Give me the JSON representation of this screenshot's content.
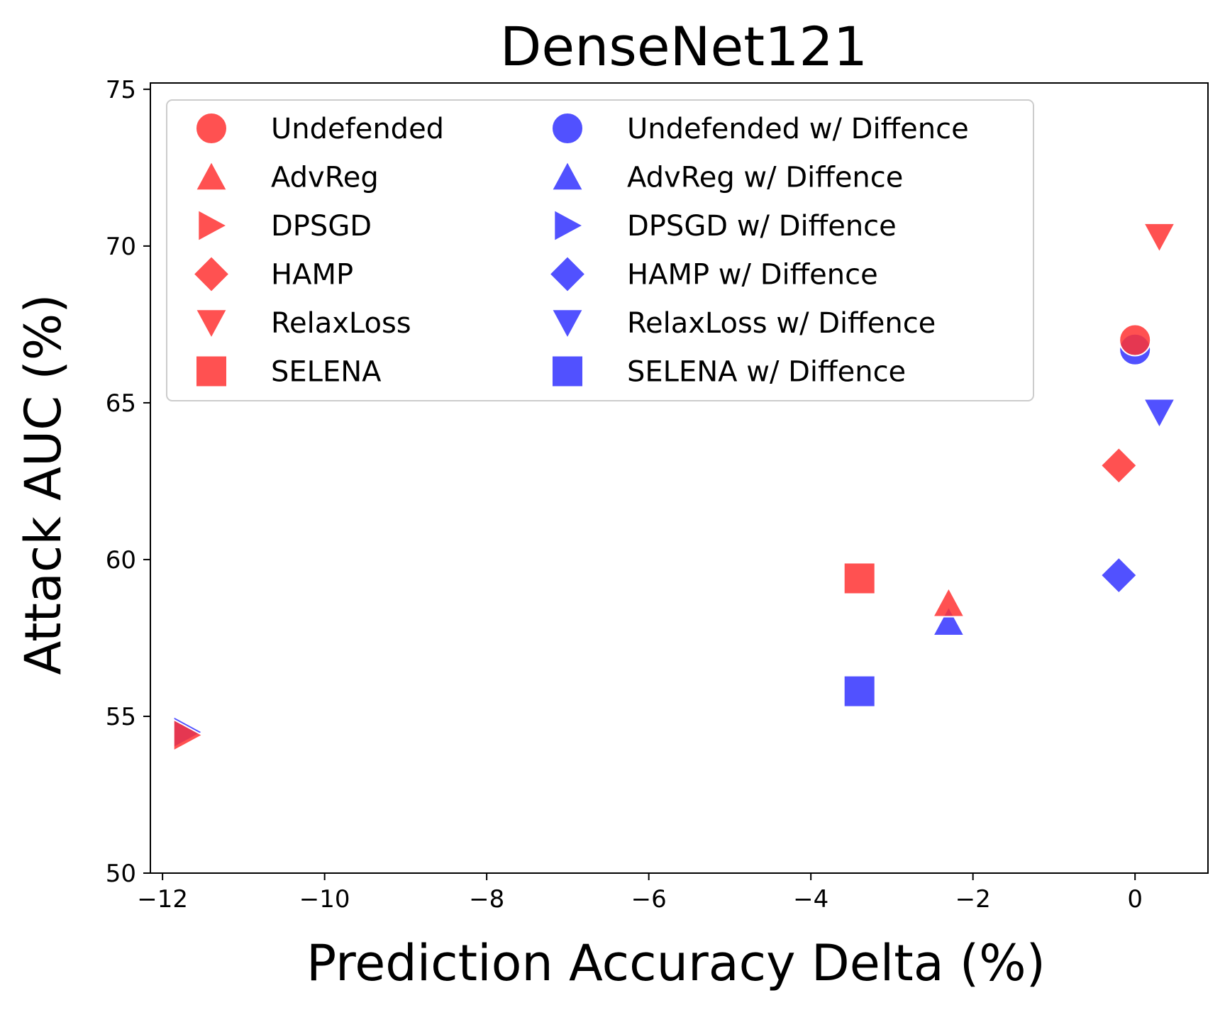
{
  "chart_data": {
    "type": "scatter",
    "title": "DenseNet121",
    "xlabel": "Prediction Accuracy Delta (%)",
    "ylabel": "Attack AUC (%)",
    "xlim": [
      -12.15,
      0.9
    ],
    "ylim": [
      50,
      75.2
    ],
    "xticks": [
      -12,
      -10,
      -8,
      -6,
      -4,
      -2,
      0
    ],
    "xtick_labels": [
      "−12",
      "−10",
      "−8",
      "−6",
      "−4",
      "−2",
      "0"
    ],
    "yticks": [
      50,
      55,
      60,
      65,
      70,
      75
    ],
    "ytick_labels": [
      "50",
      "55",
      "60",
      "65",
      "70",
      "75"
    ],
    "grid": false,
    "legend_position": "top-left",
    "legend_columns": 2,
    "colors": {
      "undefended_family": "#ff3333",
      "diffence_family": "#3333ff"
    },
    "series": [
      {
        "name": "Undefended",
        "marker": "circle",
        "color": "#ff3333",
        "x": [
          0.0
        ],
        "y": [
          67.0
        ]
      },
      {
        "name": "AdvReg",
        "marker": "triangle-up",
        "color": "#ff3333",
        "x": [
          -2.3
        ],
        "y": [
          58.6
        ]
      },
      {
        "name": "DPSGD",
        "marker": "triangle-right",
        "color": "#ff3333",
        "x": [
          -11.7
        ],
        "y": [
          54.4
        ]
      },
      {
        "name": "HAMP",
        "marker": "diamond",
        "color": "#ff3333",
        "x": [
          -0.2
        ],
        "y": [
          63.0
        ]
      },
      {
        "name": "RelaxLoss",
        "marker": "triangle-down",
        "color": "#ff3333",
        "x": [
          0.3
        ],
        "y": [
          70.3
        ]
      },
      {
        "name": "SELENA",
        "marker": "square",
        "color": "#ff3333",
        "x": [
          -3.4
        ],
        "y": [
          59.4
        ]
      },
      {
        "name": "Undefended w/ Diffence",
        "marker": "circle",
        "color": "#3333ff",
        "x": [
          0.0
        ],
        "y": [
          66.7
        ]
      },
      {
        "name": "AdvReg w/ Diffence",
        "marker": "triangle-up",
        "color": "#3333ff",
        "x": [
          -2.3
        ],
        "y": [
          58.0
        ]
      },
      {
        "name": "DPSGD w/ Diffence",
        "marker": "triangle-right",
        "color": "#3333ff",
        "x": [
          -11.7
        ],
        "y": [
          54.5
        ]
      },
      {
        "name": "HAMP w/ Diffence",
        "marker": "diamond",
        "color": "#3333ff",
        "x": [
          -0.2
        ],
        "y": [
          59.5
        ]
      },
      {
        "name": "RelaxLoss w/ Diffence",
        "marker": "triangle-down",
        "color": "#3333ff",
        "x": [
          0.3
        ],
        "y": [
          64.7
        ]
      },
      {
        "name": "SELENA w/ Diffence",
        "marker": "square",
        "color": "#3333ff",
        "x": [
          -3.4
        ],
        "y": [
          55.8
        ]
      }
    ]
  }
}
